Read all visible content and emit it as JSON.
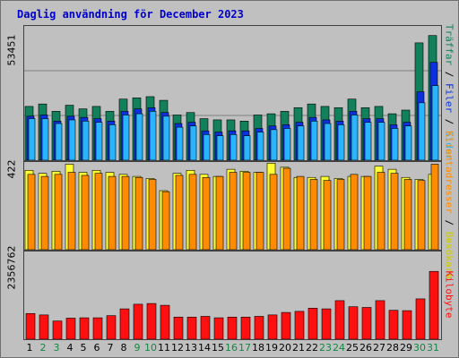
{
  "title": "Daglig användning för December 2023",
  "colors": {
    "traffar": "#12805a",
    "filer": "#0a30e0",
    "sidor": "#28b4ff",
    "besok": "#ffff33",
    "klienter": "#ff8c00",
    "kilobyte": "#ff1010",
    "weekend_day": "#118844",
    "weekday_day": "#000000"
  },
  "legend": {
    "top": {
      "traffar": "Träffar",
      "sep1": " / ",
      "filer": "Filer",
      "sep2": " / ",
      "sidor": "Sidor"
    },
    "mid": {
      "klienter": "Klientadresser",
      "sep": " / ",
      "besok": "Besökare"
    },
    "bottom": {
      "kilobyte": "Kilobyte"
    }
  },
  "axis": {
    "top_max": "53451",
    "mid_max": "422",
    "bottom_max": "2356762"
  },
  "days": [
    "1",
    "2",
    "3",
    "4",
    "5",
    "6",
    "7",
    "8",
    "9",
    "10",
    "11",
    "12",
    "13",
    "14",
    "15",
    "16",
    "17",
    "18",
    "19",
    "20",
    "21",
    "22",
    "23",
    "24",
    "25",
    "26",
    "27",
    "28",
    "29",
    "30",
    "31"
  ],
  "weekend_days": [
    "2",
    "3",
    "9",
    "10",
    "16",
    "17",
    "23",
    "24",
    "30",
    "31"
  ],
  "chart_data": [
    {
      "type": "bar",
      "title": "Daglig användning för December 2023",
      "categories": [
        "1",
        "2",
        "3",
        "4",
        "5",
        "6",
        "7",
        "8",
        "9",
        "10",
        "11",
        "12",
        "13",
        "14",
        "15",
        "16",
        "17",
        "18",
        "19",
        "20",
        "21",
        "22",
        "23",
        "24",
        "25",
        "26",
        "27",
        "28",
        "29",
        "30",
        "31"
      ],
      "ylim": [
        0,
        53451
      ],
      "series": [
        {
          "name": "Träffar",
          "values": [
            22000,
            23000,
            20000,
            22500,
            21000,
            22000,
            20000,
            25000,
            25500,
            26000,
            24500,
            18500,
            19500,
            17000,
            16500,
            16500,
            16000,
            18500,
            19000,
            20000,
            21500,
            23000,
            22000,
            21500,
            25000,
            21500,
            22000,
            19000,
            20500,
            48000,
            51000
          ]
        },
        {
          "name": "Filer",
          "values": [
            18000,
            18500,
            16000,
            18000,
            17500,
            17000,
            16000,
            20000,
            21000,
            21500,
            19500,
            15000,
            15500,
            12000,
            11500,
            12000,
            12000,
            13000,
            14000,
            14500,
            15500,
            17500,
            16500,
            16000,
            20000,
            17000,
            17000,
            14500,
            15500,
            28000,
            40000
          ]
        },
        {
          "name": "Sidor",
          "values": [
            17000,
            17000,
            15000,
            16500,
            16000,
            15500,
            14500,
            18500,
            19000,
            20000,
            18000,
            13500,
            14000,
            10500,
            10000,
            10500,
            10000,
            11500,
            12500,
            13000,
            14000,
            16000,
            15000,
            14500,
            18500,
            15500,
            15500,
            13000,
            14000,
            23500,
            30500
          ]
        }
      ]
    },
    {
      "type": "bar",
      "ylim": [
        0,
        422
      ],
      "series": [
        {
          "name": "Besökare",
          "values": [
            390,
            375,
            385,
            420,
            380,
            390,
            380,
            370,
            360,
            350,
            290,
            375,
            390,
            370,
            360,
            395,
            385,
            380,
            425,
            405,
            355,
            355,
            360,
            350,
            360,
            360,
            410,
            395,
            355,
            345,
            370
          ]
        },
        {
          "name": "Klientadresser",
          "values": [
            370,
            360,
            370,
            380,
            365,
            375,
            360,
            360,
            355,
            345,
            285,
            365,
            370,
            355,
            360,
            380,
            380,
            380,
            370,
            400,
            360,
            345,
            340,
            345,
            370,
            360,
            380,
            375,
            345,
            340,
            420
          ]
        }
      ]
    },
    {
      "type": "bar",
      "ylim": [
        0,
        2356762
      ],
      "series": [
        {
          "name": "Kilobyte",
          "values": [
            720000,
            680000,
            510000,
            590000,
            600000,
            600000,
            660000,
            850000,
            980000,
            1000000,
            950000,
            620000,
            620000,
            640000,
            600000,
            620000,
            620000,
            640000,
            680000,
            750000,
            780000,
            870000,
            850000,
            1080000,
            910000,
            890000,
            1080000,
            810000,
            800000,
            1130000,
            1900000
          ]
        }
      ]
    }
  ]
}
